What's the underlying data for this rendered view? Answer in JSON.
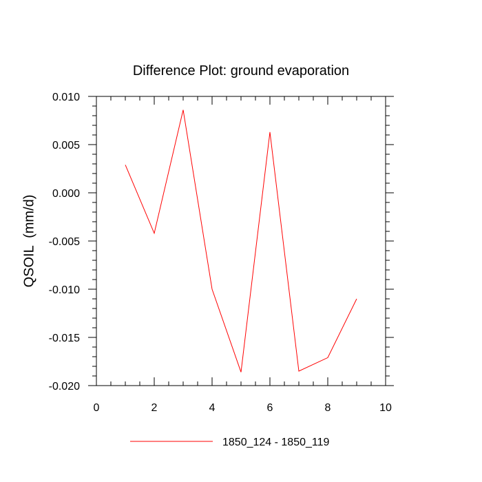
{
  "chart_data": {
    "type": "line",
    "title": "Difference Plot: ground evaporation",
    "xlabel": "",
    "ylabel": "QSOIL  (mm/d)",
    "xlim": [
      0,
      10
    ],
    "ylim": [
      -0.02,
      0.01
    ],
    "x_ticks": [
      0,
      2,
      4,
      6,
      8,
      10
    ],
    "x_tick_labels": [
      "0",
      "2",
      "4",
      "6",
      "8",
      "10"
    ],
    "y_ticks": [
      0.01,
      0.005,
      0.0,
      -0.005,
      -0.01,
      -0.015,
      -0.02
    ],
    "y_tick_labels": [
      "0.010",
      "0.005",
      "0.000",
      "-0.005",
      "-0.010",
      "-0.015",
      "-0.020"
    ],
    "grid": false,
    "legend_position": "bottom-center",
    "series": [
      {
        "name": "1850_124 - 1850_119",
        "color": "#ff0000",
        "x": [
          1,
          2,
          3,
          4,
          5,
          6,
          7,
          8,
          9
        ],
        "y": [
          0.0029,
          -0.0042,
          0.0086,
          -0.01,
          -0.0186,
          0.0063,
          -0.0185,
          -0.0171,
          -0.011
        ]
      }
    ]
  }
}
